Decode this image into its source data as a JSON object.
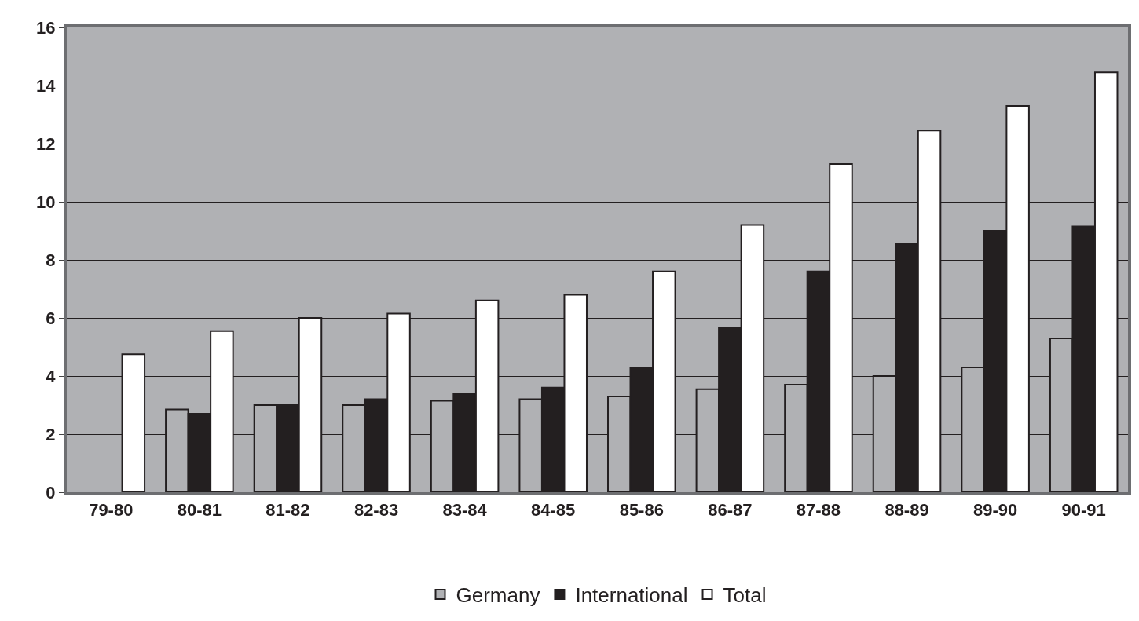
{
  "chart_data": {
    "type": "bar",
    "categories": [
      "79-80",
      "80-81",
      "81-82",
      "82-83",
      "83-84",
      "84-85",
      "85-86",
      "86-87",
      "87-88",
      "88-89",
      "89-90",
      "90-91"
    ],
    "series": [
      {
        "name": "Germany",
        "color": "#b0b1b4",
        "values": [
          null,
          2.85,
          3.0,
          3.0,
          3.15,
          3.2,
          3.3,
          3.55,
          3.7,
          4.0,
          4.3,
          5.3
        ]
      },
      {
        "name": "International",
        "color": "#231f20",
        "values": [
          null,
          2.7,
          3.0,
          3.2,
          3.4,
          3.6,
          4.3,
          5.65,
          7.6,
          8.55,
          9.0,
          9.15
        ]
      },
      {
        "name": "Total",
        "color": "#ffffff",
        "values": [
          4.75,
          5.55,
          6.0,
          6.15,
          6.6,
          6.8,
          7.6,
          9.2,
          11.3,
          12.45,
          13.3,
          14.45
        ]
      }
    ],
    "ylim": [
      0,
      16
    ],
    "yticks": [
      0,
      2,
      4,
      6,
      8,
      10,
      12,
      14,
      16
    ],
    "grid": "y",
    "legend": "bottom"
  }
}
